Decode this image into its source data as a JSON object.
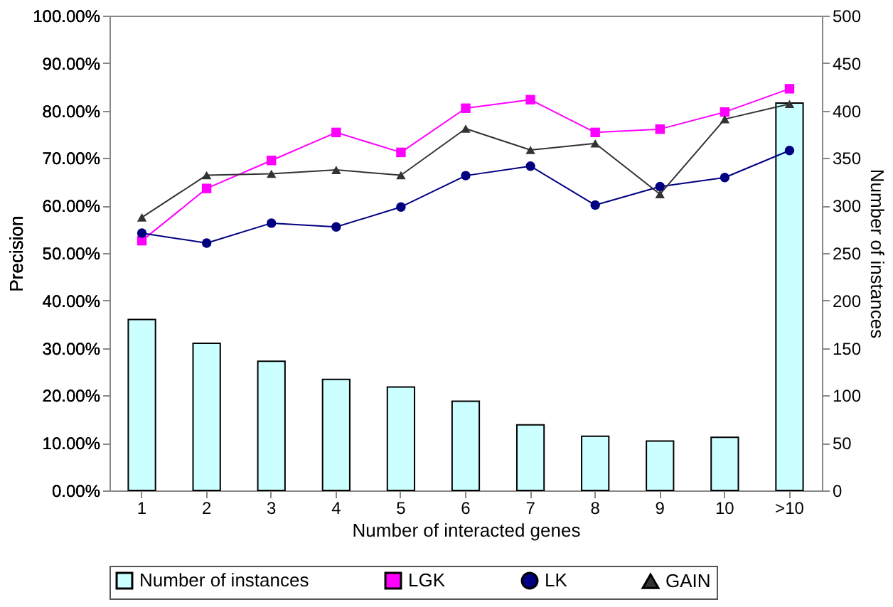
{
  "chart_data": {
    "type": "line",
    "categories": [
      "1",
      "2",
      "3",
      "4",
      "5",
      "6",
      "7",
      "8",
      "9",
      "10",
      ">10"
    ],
    "xlabel": "Number of interacted genes",
    "ylabel": "Precision",
    "y2label": "Number of instances",
    "series": [
      {
        "name": "Number of instances",
        "type": "bar",
        "axis": "y2",
        "color": "#ccffff",
        "values": [
          180,
          155,
          136,
          117,
          109,
          94,
          69,
          57,
          52,
          56,
          408
        ]
      },
      {
        "name": "LGK",
        "marker": "square",
        "color": "#ff00ff",
        "values": [
          52.6,
          63.6,
          69.5,
          75.4,
          71.2,
          80.5,
          82.3,
          75.4,
          76.1,
          79.7,
          84.6
        ]
      },
      {
        "name": "LK",
        "marker": "circle",
        "color": "#000080",
        "values": [
          54.2,
          52.1,
          56.3,
          55.5,
          59.7,
          66.3,
          68.3,
          60.1,
          64.0,
          65.9,
          71.6
        ]
      },
      {
        "name": "GAIN",
        "marker": "triangle",
        "color": "#333333",
        "values": [
          57.5,
          66.4,
          66.7,
          67.5,
          66.4,
          76.2,
          71.7,
          73.1,
          62.4,
          78.2,
          81.4
        ]
      }
    ],
    "ylim": [
      0,
      100
    ],
    "yticks": [
      {
        "value": 0,
        "label": "0.00%"
      },
      {
        "value": 10,
        "label": "10.00%"
      },
      {
        "value": 20,
        "label": "20.00%"
      },
      {
        "value": 30,
        "label": "30.00%"
      },
      {
        "value": 40,
        "label": "40.00%"
      },
      {
        "value": 50,
        "label": "50.00%"
      },
      {
        "value": 60,
        "label": "60.00%"
      },
      {
        "value": 70,
        "label": "70.00%"
      },
      {
        "value": 80,
        "label": "80.00%"
      },
      {
        "value": 90,
        "label": "90.00%"
      },
      {
        "value": 100,
        "label": "100.00%"
      }
    ],
    "y2lim": [
      0,
      500
    ],
    "y2ticks": [
      0,
      50,
      100,
      150,
      200,
      250,
      300,
      350,
      400,
      450,
      500
    ],
    "grid": false,
    "legend": "bottom",
    "line_style": "solid"
  }
}
